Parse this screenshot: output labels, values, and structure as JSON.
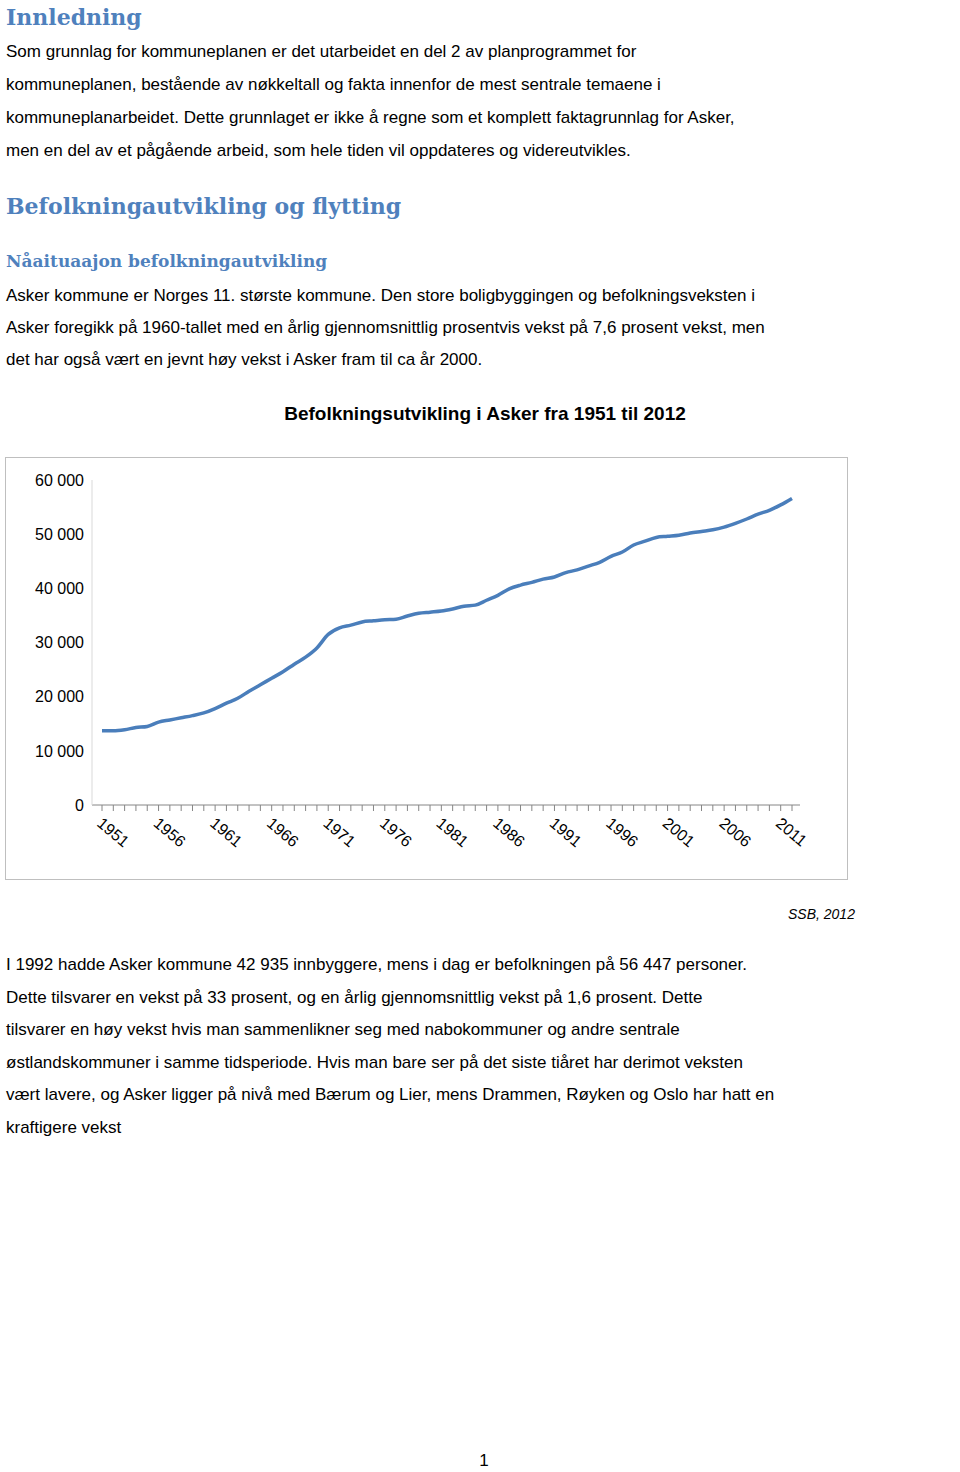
{
  "headings": {
    "intro": "Innledning",
    "section": "Befolkningautvikling og flytting",
    "subsection": "Nåaituaajon befolkningautvikling"
  },
  "paragraphs": {
    "intro": [
      "Som grunnlag for kommuneplanen er det utarbeidet en del 2 av planprogrammet for",
      "kommuneplanen, bestående av nøkkeltall og fakta innenfor de mest sentrale temaene i",
      "kommuneplanarbeidet. Dette grunnlaget er ikke å regne som et komplett faktagrunnlag for Asker,",
      "men en del av et pågående arbeid, som hele tiden vil oppdateres og videreutvikles."
    ],
    "situation": [
      "Asker kommune er Norges 11. største kommune. Den store boligbyggingen og befolkningsveksten i",
      "Asker foregikk på 1960-tallet med en årlig gjennomsnittlig prosentvis vekst på 7,6 prosent vekst, men",
      "det har også vært en jevnt høy vekst i Asker fram til ca år 2000."
    ],
    "growth": [
      "I 1992 hadde Asker kommune 42 935 innbyggere, mens i dag er befolkningen på 56 447 personer.",
      "Dette tilsvarer en vekst på 33 prosent, og en årlig gjennomsnittlig vekst på 1,6 prosent. Dette",
      "tilsvarer en høy vekst hvis man sammenlikner seg med nabokommuner og andre sentrale",
      "østlandskommuner i samme tidsperiode. Hvis man bare ser på det siste tiåret har derimot veksten",
      "vært lavere, og Asker ligger på nivå med Bærum og Lier, mens Drammen, Røyken og Oslo har hatt en",
      "kraftigere vekst"
    ]
  },
  "chart_data": {
    "type": "line",
    "title": "Befolkningsutvikling i Asker fra 1951 til 2012",
    "categories": [
      "1951",
      null,
      null,
      null,
      null,
      "1956",
      null,
      null,
      null,
      null,
      "1961",
      null,
      null,
      null,
      null,
      "1966",
      null,
      null,
      null,
      null,
      "1971",
      null,
      null,
      null,
      null,
      "1976",
      null,
      null,
      null,
      null,
      "1981",
      null,
      null,
      null,
      null,
      "1986",
      null,
      null,
      null,
      null,
      "1991",
      null,
      null,
      null,
      null,
      "1996",
      null,
      null,
      null,
      null,
      "2001",
      null,
      null,
      null,
      null,
      "2006",
      null,
      null,
      null,
      null,
      "2011",
      null
    ],
    "values": [
      13700,
      13700,
      13900,
      14300,
      14500,
      15300,
      15700,
      16100,
      16500,
      17000,
      17800,
      18800,
      19700,
      21000,
      22200,
      23400,
      24600,
      26000,
      27300,
      29000,
      31500,
      32700,
      33200,
      33800,
      34000,
      34200,
      34300,
      34900,
      35400,
      35600,
      35800,
      36200,
      36700,
      36900,
      37800,
      38700,
      39900,
      40600,
      41100,
      41700,
      42100,
      42900,
      43400,
      44100,
      44800,
      45900,
      46700,
      48000,
      48700,
      49400,
      49600,
      49800,
      50200,
      50500,
      50800,
      51300,
      52000,
      52800,
      53700,
      54400,
      55400,
      56600
    ],
    "color": "#4a7ebb",
    "ylim": [
      0,
      60000
    ],
    "yticks": [
      0,
      {
        "value": 10000,
        "label": "10 000"
      },
      {
        "value": 20000,
        "label": "20 000"
      },
      {
        "value": 30000,
        "label": "30 000"
      },
      {
        "value": 40000,
        "label": "40 000"
      },
      {
        "value": 50000,
        "label": "50 000"
      },
      {
        "value": 60000,
        "label": "60 000"
      }
    ],
    "grid": false
  },
  "source": "SSB, 2012",
  "page_number": 1
}
